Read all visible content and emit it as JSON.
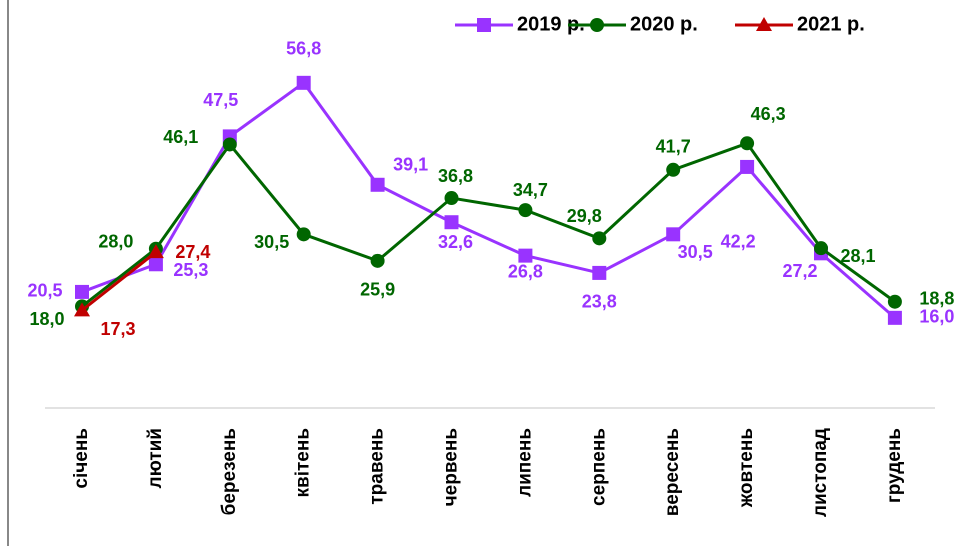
{
  "chart_data": {
    "type": "line",
    "categories": [
      "січень",
      "лютий",
      "березень",
      "квітень",
      "травень",
      "червень",
      "липень",
      "серпень",
      "вересень",
      "жовтень",
      "листопад",
      "грудень"
    ],
    "series": [
      {
        "name": "2019 р.",
        "color": "#9933ff",
        "marker": "square",
        "values": [
          20.5,
          25.3,
          47.5,
          56.8,
          39.1,
          32.6,
          26.8,
          23.8,
          30.5,
          42.2,
          27.2,
          16.0
        ],
        "value_labels": [
          "20,5",
          "25,3",
          "47,5",
          "56,8",
          "39,1",
          "32,6",
          "26,8",
          "23,8",
          "30,5",
          "42,2",
          "27,2",
          "16,0"
        ]
      },
      {
        "name": "2020 р.",
        "color": "#006600",
        "marker": "circle",
        "values": [
          18.0,
          28.0,
          46.1,
          30.5,
          25.9,
          36.8,
          34.7,
          29.8,
          41.7,
          46.3,
          28.1,
          18.8
        ],
        "value_labels": [
          "18,0",
          "28,0",
          "46,1",
          "30,5",
          "25,9",
          "36,8",
          "34,7",
          "29,8",
          "41,7",
          "46,3",
          "28,1",
          "18,8"
        ]
      },
      {
        "name": "2021 р.",
        "color": "#c00000",
        "marker": "triangle",
        "values": [
          17.3,
          27.4,
          null,
          null,
          null,
          null,
          null,
          null,
          null,
          null,
          null,
          null
        ],
        "value_labels": [
          "17,3",
          "27,4",
          null,
          null,
          null,
          null,
          null,
          null,
          null,
          null,
          null,
          null
        ]
      }
    ],
    "ylim": [
      0,
      71
    ],
    "legend": "top-right"
  }
}
